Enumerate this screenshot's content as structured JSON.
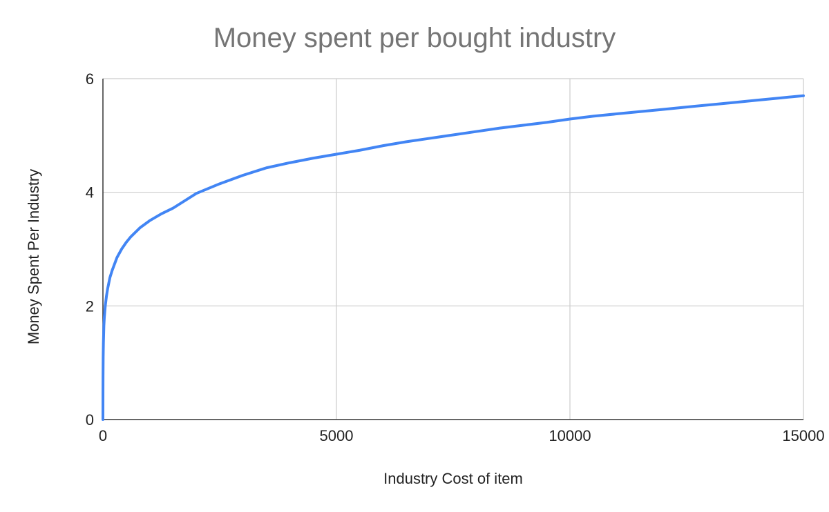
{
  "chart_data": {
    "type": "line",
    "title": "Money spent per bought industry",
    "xlabel": "Industry Cost of item",
    "ylabel": "Money Spent Per Industry",
    "xlim": [
      0,
      15000
    ],
    "ylim": [
      0,
      6
    ],
    "x_ticks": [
      0,
      5000,
      10000,
      15000
    ],
    "x_tick_labels": [
      "0",
      "5000",
      "10000",
      "15000"
    ],
    "y_ticks": [
      0,
      2,
      4,
      6
    ],
    "y_tick_labels": [
      "0",
      "2",
      "4",
      "6"
    ],
    "grid": true,
    "legend": "none",
    "colors": {
      "line": "#4285F4",
      "grid": "#cccccc",
      "axis": "#333333",
      "title": "#757575",
      "text": "#222222"
    },
    "series": [
      {
        "x": [
          0,
          1,
          2,
          5,
          10,
          20,
          30,
          50,
          75,
          100,
          150,
          200,
          300,
          400,
          500,
          600,
          800,
          1000,
          1250,
          1500,
          2000,
          2500,
          3000,
          3500,
          4000,
          4500,
          5000,
          5500,
          6000,
          6500,
          7000,
          7500,
          8000,
          8500,
          9000,
          9500,
          10000,
          10500,
          11000,
          11500,
          12000,
          12500,
          13000,
          13500,
          14000,
          14500,
          15000
        ],
        "values": [
          0,
          0.5,
          0.75,
          1.1,
          1.35,
          1.65,
          1.8,
          2.0,
          2.17,
          2.3,
          2.5,
          2.63,
          2.85,
          3.0,
          3.12,
          3.22,
          3.38,
          3.5,
          3.62,
          3.72,
          3.98,
          4.15,
          4.3,
          4.43,
          4.52,
          4.6,
          4.67,
          4.74,
          4.82,
          4.89,
          4.95,
          5.01,
          5.07,
          5.13,
          5.18,
          5.23,
          5.29,
          5.34,
          5.38,
          5.42,
          5.46,
          5.5,
          5.54,
          5.58,
          5.62,
          5.66,
          5.7
        ]
      }
    ]
  }
}
